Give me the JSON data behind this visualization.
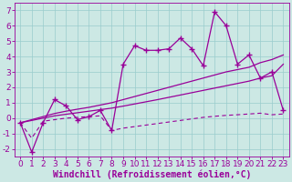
{
  "xlabel": "Windchill (Refroidissement éolien,°C)",
  "x": [
    0,
    1,
    2,
    3,
    4,
    5,
    6,
    7,
    8,
    9,
    10,
    11,
    12,
    13,
    14,
    15,
    16,
    17,
    18,
    19,
    20,
    21,
    22,
    23
  ],
  "line1_y": [
    -0.3,
    -2.2,
    -0.3,
    1.2,
    0.8,
    -0.1,
    0.1,
    0.5,
    -0.8,
    3.5,
    4.7,
    4.4,
    4.4,
    4.5,
    5.2,
    4.5,
    3.4,
    6.9,
    6.0,
    3.5,
    4.1,
    2.6,
    3.0,
    0.5
  ],
  "line2_y": [
    -0.3,
    -1.3,
    -0.2,
    -0.1,
    0.0,
    0.05,
    0.1,
    0.15,
    -0.8,
    -0.65,
    -0.55,
    -0.45,
    -0.35,
    -0.25,
    -0.15,
    -0.05,
    0.05,
    0.12,
    0.18,
    0.22,
    0.27,
    0.32,
    0.22,
    0.27
  ],
  "line3_y": [
    -0.3,
    -0.15,
    0.0,
    0.15,
    0.25,
    0.35,
    0.45,
    0.55,
    0.65,
    0.78,
    0.92,
    1.06,
    1.2,
    1.35,
    1.5,
    1.65,
    1.8,
    1.95,
    2.1,
    2.25,
    2.4,
    2.6,
    2.75,
    3.5
  ],
  "line4_y": [
    -0.3,
    -0.1,
    0.1,
    0.3,
    0.45,
    0.58,
    0.7,
    0.85,
    1.0,
    1.2,
    1.4,
    1.6,
    1.8,
    2.0,
    2.2,
    2.4,
    2.6,
    2.8,
    3.0,
    3.15,
    3.3,
    3.6,
    3.8,
    4.1
  ],
  "ylim": [
    -2.5,
    7.5
  ],
  "xlim": [
    -0.5,
    23.5
  ],
  "bg_color": "#cce8e4",
  "line_color": "#990099",
  "grid_color": "#99cccc",
  "tick_fontsize": 6.5,
  "label_fontsize": 7.0
}
